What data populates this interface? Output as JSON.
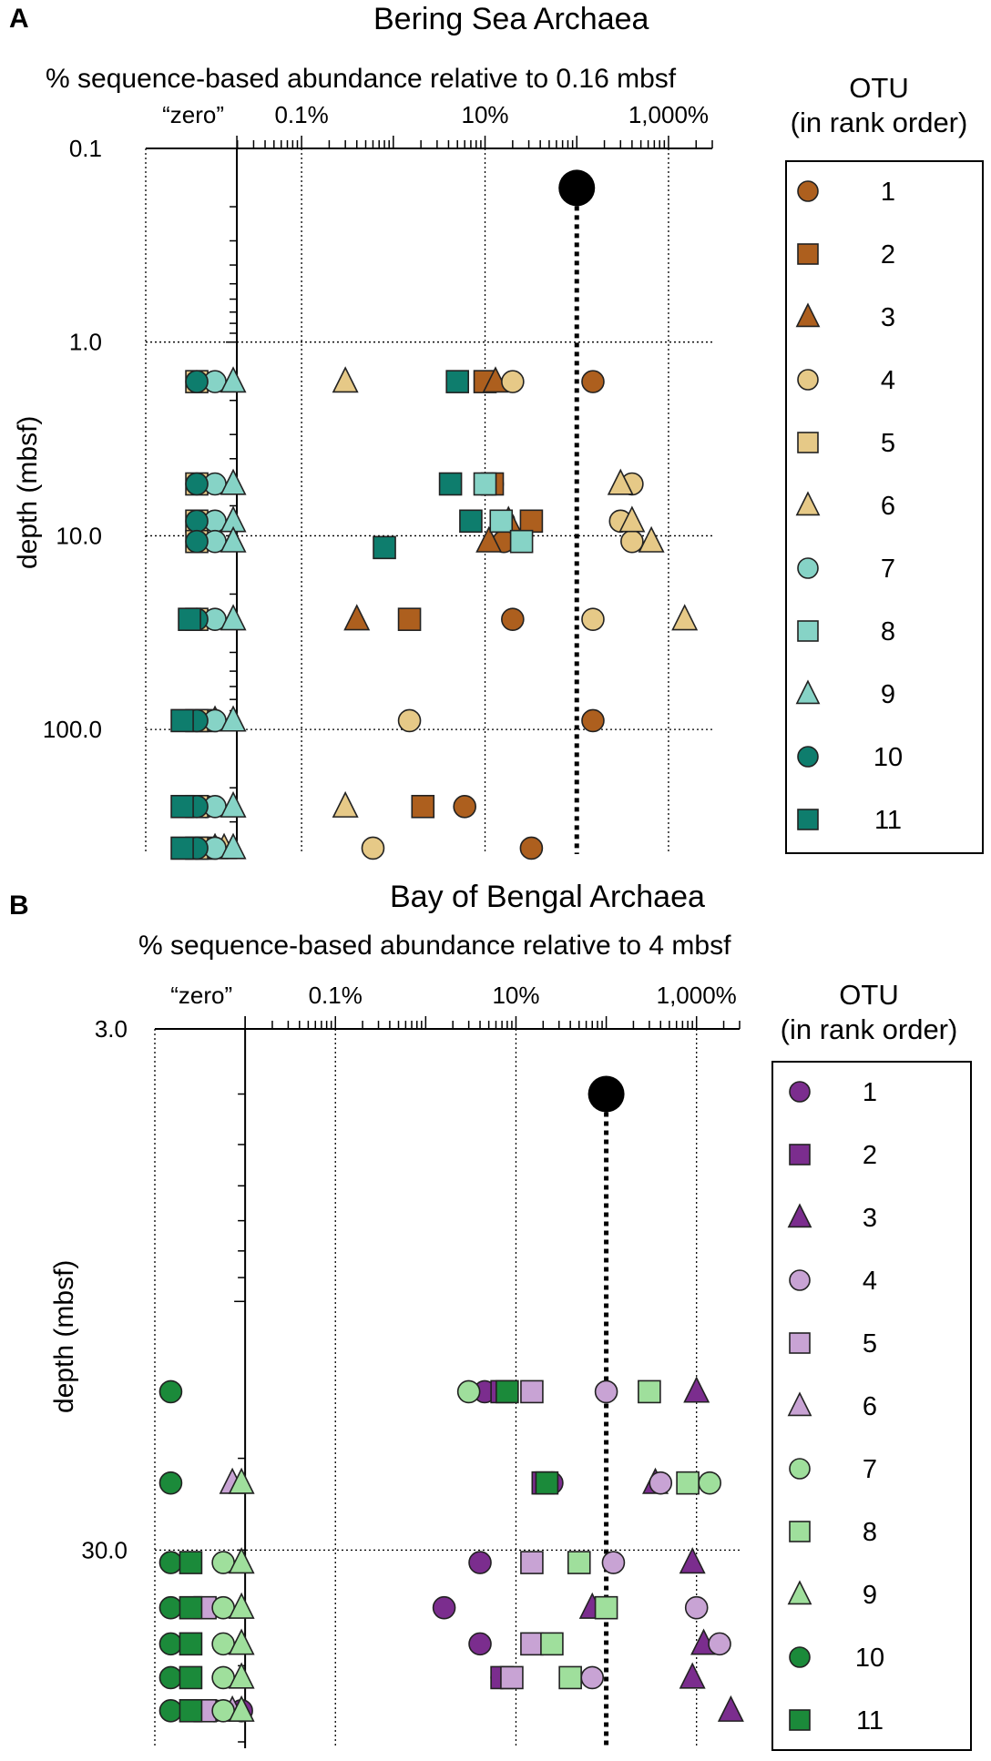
{
  "chart_data": [
    {
      "panel": "A",
      "type": "scatter",
      "title": "Bering Sea Archaea",
      "xlabel": "% sequence-based abundance relative to 0.16 mbsf",
      "ylabel": "depth (mbsf)",
      "x_scale": "log",
      "y_scale": "log",
      "x_tick_labels": [
        "“zero”",
        "0.1%",
        "10%",
        "1,000%"
      ],
      "y_tick_labels": [
        "0.1",
        "1.0",
        "10.0",
        "100.0"
      ],
      "x_ticks": [
        0.1,
        10,
        1000
      ],
      "y_ticks": [
        0.1,
        1,
        10,
        100
      ],
      "xlim": [
        0.002,
        3000
      ],
      "ylim": [
        0.1,
        440
      ],
      "zero_x": 0.0197,
      "reference": {
        "depth": 0.16,
        "value": 100
      },
      "legend": {
        "title_lines": [
          "OTU",
          "(in rank order)"
        ],
        "otus": [
          "1",
          "2",
          "3",
          "4",
          "5",
          "6",
          "7",
          "8",
          "9",
          "10",
          "11"
        ]
      },
      "colors": {
        "dark": "#ad5f1e",
        "light": "#e6c987",
        "dark2": "#0e7d6d",
        "light2": "#86d3c6"
      },
      "series": [
        {
          "name": "1",
          "color": "#ad5f1e",
          "shape": "circle",
          "points": [
            [
              150,
              1.6
            ],
            [
              12,
              5.4
            ],
            [
              16,
              8.4
            ],
            [
              16,
              10.7
            ],
            [
              20,
              27
            ],
            [
              150,
              90
            ],
            [
              6,
              250
            ],
            [
              32,
              410
            ]
          ]
        },
        {
          "name": "2",
          "color": "#ad5f1e",
          "shape": "square",
          "points": [
            [
              10,
              1.6
            ],
            [
              12,
              5.4
            ],
            [
              32,
              8.4
            ],
            [
              1.5,
              27
            ],
            [
              2.1,
              250
            ],
            [
              "zero",
              90
            ],
            [
              "zero",
              410
            ]
          ]
        },
        {
          "name": "3",
          "color": "#ad5f1e",
          "shape": "triangle",
          "points": [
            [
              13,
              1.6
            ],
            [
              18,
              8.4
            ],
            [
              11,
              10.7
            ],
            [
              0.4,
              27
            ],
            [
              "zero",
              90
            ],
            [
              "zero",
              410
            ]
          ]
        },
        {
          "name": "4",
          "color": "#e6c987",
          "shape": "circle",
          "points": [
            [
              20,
              1.6
            ],
            [
              400,
              5.4
            ],
            [
              300,
              8.4
            ],
            [
              400,
              10.7
            ],
            [
              150,
              27
            ],
            [
              1.5,
              90
            ],
            [
              0.6,
              410
            ],
            [
              "zero",
              250
            ]
          ]
        },
        {
          "name": "5",
          "color": "#e6c987",
          "shape": "square",
          "points": [
            [
              "zero",
              1.6
            ],
            [
              "zero",
              5.4
            ],
            [
              "zero",
              8.4
            ],
            [
              "zero",
              10.7
            ],
            [
              "zero",
              27
            ],
            [
              "zero",
              90
            ],
            [
              "zero",
              250
            ],
            [
              "zero",
              410
            ]
          ]
        },
        {
          "name": "6",
          "color": "#e6c987",
          "shape": "triangle",
          "points": [
            [
              0.3,
              1.6
            ],
            [
              300,
              5.4
            ],
            [
              400,
              8.4
            ],
            [
              650,
              10.7
            ],
            [
              1500,
              27
            ],
            [
              0.3,
              250
            ],
            [
              "zero",
              410
            ]
          ]
        },
        {
          "name": "7",
          "color": "#86d3c6",
          "shape": "circle",
          "points": [
            [
              "zero",
              1.6
            ],
            [
              "zero",
              5.4
            ],
            [
              "zero",
              8.4
            ],
            [
              "zero",
              10.7
            ],
            [
              "zero",
              27
            ],
            [
              "zero",
              90
            ],
            [
              "zero",
              250
            ],
            [
              "zero",
              410
            ]
          ]
        },
        {
          "name": "8",
          "color": "#86d3c6",
          "shape": "square",
          "points": [
            [
              10,
              5.4
            ],
            [
              15,
              8.4
            ],
            [
              25,
              10.7
            ]
          ]
        },
        {
          "name": "9",
          "color": "#86d3c6",
          "shape": "triangle",
          "points": [
            [
              "zero",
              1.6
            ],
            [
              "zero",
              5.4
            ],
            [
              "zero",
              8.4
            ],
            [
              "zero",
              10.7
            ],
            [
              "zero",
              27
            ],
            [
              "zero",
              90
            ],
            [
              "zero",
              250
            ],
            [
              "zero",
              410
            ]
          ]
        },
        {
          "name": "10",
          "color": "#0e7d6d",
          "shape": "circle",
          "points": [
            [
              "zero",
              1.6
            ],
            [
              "zero",
              5.4
            ],
            [
              "zero",
              8.4
            ],
            [
              "zero",
              10.7
            ],
            [
              "zero",
              27
            ],
            [
              "zero",
              90
            ],
            [
              "zero",
              250
            ],
            [
              "zero",
              410
            ]
          ]
        },
        {
          "name": "11",
          "color": "#0e7d6d",
          "shape": "square",
          "points": [
            [
              5,
              1.6
            ],
            [
              4.2,
              5.4
            ],
            [
              7,
              8.4
            ],
            [
              0.8,
              11.5
            ],
            [
              0.006,
              27
            ],
            [
              0.005,
              90
            ],
            [
              0.005,
              250
            ],
            [
              0.005,
              410
            ]
          ]
        }
      ]
    },
    {
      "panel": "B",
      "type": "scatter",
      "title": "Bay of Bengal Archaea",
      "xlabel": "% sequence-based abundance relative to 4 mbsf",
      "ylabel": "depth (mbsf)",
      "x_scale": "log",
      "y_scale": "log",
      "x_tick_labels": [
        "“zero”",
        "0.1%",
        "10%",
        "1,000%"
      ],
      "y_tick_labels": [
        "3.0",
        "30.0"
      ],
      "x_ticks": [
        0.1,
        10,
        1000
      ],
      "y_ticks": [
        3,
        30
      ],
      "xlim": [
        0.001,
        3000
      ],
      "ylim": [
        3,
        72
      ],
      "zero_x": 0.01,
      "reference": {
        "depth": 4,
        "value": 100
      },
      "legend": {
        "title_lines": [
          "OTU",
          "(in rank order)"
        ],
        "otus": [
          "1",
          "2",
          "3",
          "4",
          "5",
          "6",
          "7",
          "8",
          "9",
          "10",
          "11"
        ]
      },
      "colors": {
        "dark": "#7b2d8e",
        "light": "#c8a3d4",
        "dark2": "#1b8a3a",
        "light2": "#9fdf9c"
      },
      "series": [
        {
          "name": "1",
          "color": "#7b2d8e",
          "shape": "circle",
          "points": [
            [
              4.5,
              14.9
            ],
            [
              25,
              22.3
            ],
            [
              4,
              31.7
            ],
            [
              1.6,
              38.7
            ],
            [
              4,
              45.4
            ],
            [
              7,
              52.7
            ],
            [
              "zero",
              61
            ]
          ]
        },
        {
          "name": "2",
          "color": "#7b2d8e",
          "shape": "square",
          "points": [
            [
              7,
              14.9
            ],
            [
              20,
              22.3
            ],
            [
              7,
              52.7
            ]
          ]
        },
        {
          "name": "3",
          "color": "#7b2d8e",
          "shape": "triangle",
          "points": [
            [
              1000,
              14.9
            ],
            [
              350,
              22.3
            ],
            [
              900,
              31.7
            ],
            [
              70,
              38.7
            ],
            [
              1200,
              45.4
            ],
            [
              900,
              52.7
            ],
            [
              2400,
              61
            ]
          ]
        },
        {
          "name": "4",
          "color": "#c8a3d4",
          "shape": "circle",
          "points": [
            [
              100,
              14.9
            ],
            [
              400,
              22.3
            ],
            [
              120,
              31.7
            ],
            [
              1000,
              38.7
            ],
            [
              1800,
              45.4
            ],
            [
              70,
              52.7
            ],
            [
              "zero",
              61
            ]
          ]
        },
        {
          "name": "5",
          "color": "#c8a3d4",
          "shape": "square",
          "points": [
            [
              15,
              14.9
            ],
            [
              15,
              31.7
            ],
            [
              "zero",
              38.7
            ],
            [
              15,
              45.4
            ],
            [
              9,
              52.7
            ],
            [
              "zero",
              61
            ]
          ]
        },
        {
          "name": "6",
          "color": "#c8a3d4",
          "shape": "triangle",
          "points": [
            [
              "zero",
              22.3
            ],
            [
              "zero",
              61
            ]
          ]
        },
        {
          "name": "7",
          "color": "#9fdf9c",
          "shape": "circle",
          "points": [
            [
              3,
              14.9
            ],
            [
              1400,
              22.3
            ],
            [
              "zero",
              31.7
            ],
            [
              "zero",
              38.7
            ],
            [
              "zero",
              45.4
            ],
            [
              "zero",
              52.7
            ],
            [
              "zero",
              61
            ]
          ]
        },
        {
          "name": "8",
          "color": "#9fdf9c",
          "shape": "square",
          "points": [
            [
              300,
              14.9
            ],
            [
              800,
              22.3
            ],
            [
              50,
              31.7
            ],
            [
              100,
              38.7
            ],
            [
              25,
              45.4
            ],
            [
              40,
              52.7
            ]
          ]
        },
        {
          "name": "9",
          "color": "#9fdf9c",
          "shape": "triangle",
          "points": [
            [
              "zero",
              22.3
            ],
            [
              "zero",
              31.7
            ],
            [
              "zero",
              38.7
            ],
            [
              "zero",
              45.4
            ],
            [
              "zero",
              52.7
            ],
            [
              "zero",
              61
            ]
          ]
        },
        {
          "name": "10",
          "color": "#1b8a3a",
          "shape": "circle",
          "points": [
            [
              0.0015,
              14.9
            ],
            [
              0.0015,
              22.3
            ],
            [
              0.0015,
              31.7
            ],
            [
              0.0015,
              38.7
            ],
            [
              0.0015,
              45.4
            ],
            [
              0.0015,
              52.7
            ],
            [
              0.0015,
              61
            ]
          ]
        },
        {
          "name": "11",
          "color": "#1b8a3a",
          "shape": "square",
          "points": [
            [
              8,
              14.9
            ],
            [
              22,
              22.3
            ],
            [
              0.0025,
              31.7
            ],
            [
              0.0025,
              38.7
            ],
            [
              0.0025,
              45.4
            ],
            [
              0.0025,
              52.7
            ],
            [
              0.0025,
              61
            ]
          ]
        }
      ]
    }
  ]
}
